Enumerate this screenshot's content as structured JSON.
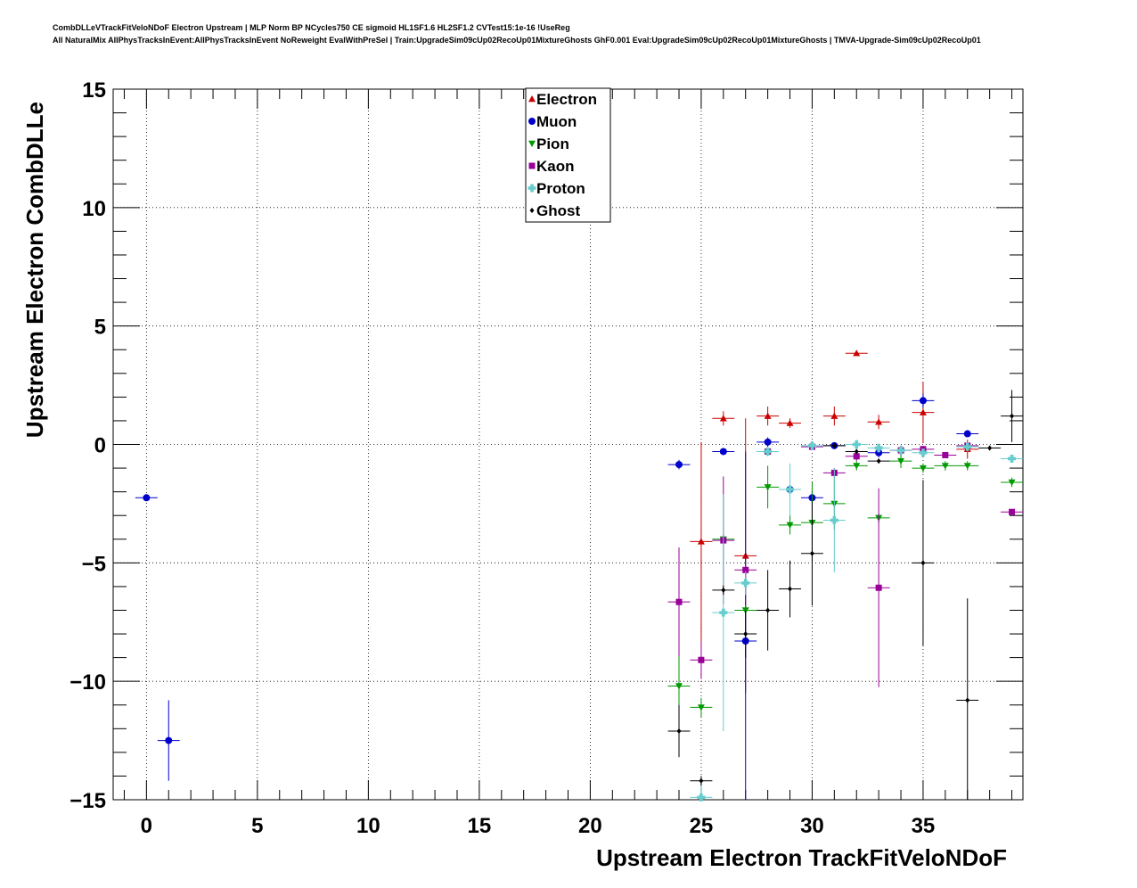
{
  "header": {
    "title_line1": "CombDLLeVTrackFitVeloNDoF Electron Upstream | MLP Norm BP NCycles750 CE sigmoid HL1SF1.6 HL2SF1.2 CVTest15:1e-16 !UseReg",
    "title_line2": "All NaturalMix AllPhysTracksInEvent:AllPhysTracksInEvent NoReweight EvalWithPreSel | Train:UpgradeSim09cUp02RecoUp01MixtureGhosts GhF0.001 Eval:UpgradeSim09cUp02RecoUp01MixtureGhosts | TMVA-Upgrade-Sim09cUp02RecoUp01"
  },
  "chart_data": {
    "type": "scatter",
    "xlabel": "Upstream Electron TrackFitVeloNDoF",
    "ylabel": "Upstream Electron CombDLLe",
    "xlim": [
      -1.5,
      39.5
    ],
    "ylim": [
      -15,
      15
    ],
    "x_ticks": [
      0,
      5,
      10,
      15,
      20,
      25,
      30,
      35
    ],
    "x_tick_labels": [
      "0",
      "5",
      "10",
      "15",
      "20",
      "25",
      "30",
      "35"
    ],
    "y_ticks": [
      -15,
      -10,
      -5,
      0,
      5,
      10,
      15
    ],
    "y_tick_labels": [
      "−15",
      "−10",
      "−5",
      "0",
      "5",
      "10",
      "15"
    ],
    "grid": true,
    "legend_position": "top-center",
    "series": [
      {
        "name": "Electron",
        "color": "#cc0000",
        "marker": "triangle-up",
        "points": [
          [
            25,
            -4.1,
            4.2
          ],
          [
            26,
            1.1,
            0.3
          ],
          [
            27,
            -4.7,
            5.8
          ],
          [
            28,
            1.2,
            0.4
          ],
          [
            29,
            0.9,
            0.2
          ],
          [
            31,
            1.2,
            0.4
          ],
          [
            32,
            3.85,
            0.1
          ],
          [
            33,
            0.95,
            0.3
          ],
          [
            35,
            1.35,
            1.3
          ],
          [
            37,
            -0.2,
            0.4
          ]
        ]
      },
      {
        "name": "Muon",
        "color": "#0000cc",
        "marker": "circle",
        "points": [
          [
            0,
            -2.25,
            0.1
          ],
          [
            1,
            -12.5,
            1.7
          ],
          [
            24,
            -0.85,
            0.2
          ],
          [
            26,
            -0.3,
            0.1
          ],
          [
            27,
            -8.3,
            8.0
          ],
          [
            28,
            0.1,
            0.2
          ],
          [
            29,
            -1.9,
            0.2
          ],
          [
            30,
            -2.25,
            0.3
          ],
          [
            31,
            -0.05,
            0.1
          ],
          [
            33,
            -0.35,
            0.2
          ],
          [
            35,
            1.85,
            0.3
          ],
          [
            37,
            0.45,
            0.1
          ]
        ]
      },
      {
        "name": "Pion",
        "color": "#009900",
        "marker": "triangle-down",
        "points": [
          [
            24,
            -10.2,
            1.4
          ],
          [
            25,
            -11.1,
            0.4
          ],
          [
            26,
            -4.0,
            0.2
          ],
          [
            27,
            -7.0,
            0.2
          ],
          [
            28,
            -1.8,
            0.9
          ],
          [
            29,
            -3.4,
            0.4
          ],
          [
            30,
            -3.3,
            1.7
          ],
          [
            31,
            -2.5,
            1.1
          ],
          [
            32,
            -0.9,
            0.2
          ],
          [
            33,
            -3.1,
            0.2
          ],
          [
            34,
            -0.7,
            0.3
          ],
          [
            35,
            -1.0,
            0.2
          ],
          [
            36,
            -0.9,
            0.2
          ],
          [
            37,
            -0.9,
            0.2
          ],
          [
            39,
            -1.6,
            0.2
          ]
        ]
      },
      {
        "name": "Kaon",
        "color": "#990099",
        "marker": "square",
        "points": [
          [
            24,
            -6.65,
            2.3
          ],
          [
            25,
            -9.1,
            0.8
          ],
          [
            26,
            -4.05,
            2.7
          ],
          [
            27,
            -5.3,
            0.2
          ],
          [
            28,
            -0.3,
            0.1
          ],
          [
            30,
            -0.1,
            0.1
          ],
          [
            31,
            -1.2,
            0.2
          ],
          [
            32,
            -0.5,
            0.2
          ],
          [
            33,
            -6.05,
            4.2
          ],
          [
            34,
            -0.25,
            0.2
          ],
          [
            35,
            -0.2,
            0.1
          ],
          [
            36,
            -0.45,
            0.1
          ],
          [
            37,
            -0.05,
            0.1
          ],
          [
            39,
            -2.85,
            0.1
          ]
        ]
      },
      {
        "name": "Proton",
        "color": "#66cccc",
        "marker": "cross",
        "points": [
          [
            25,
            -14.9,
            0.9
          ],
          [
            26,
            -7.1,
            5.0
          ],
          [
            27,
            -5.85,
            0.5
          ],
          [
            28,
            -0.3,
            0.2
          ],
          [
            29,
            -1.9,
            1.1
          ],
          [
            30,
            -0.05,
            0.2
          ],
          [
            31,
            -3.2,
            2.2
          ],
          [
            32,
            0.0,
            0.2
          ],
          [
            33,
            -0.15,
            0.2
          ],
          [
            34,
            -0.25,
            0.1
          ],
          [
            35,
            -0.35,
            0.1
          ],
          [
            37,
            -0.1,
            0.2
          ],
          [
            39,
            -0.6,
            0.1
          ]
        ]
      },
      {
        "name": "Ghost",
        "color": "#000000",
        "marker": "diamond",
        "points": [
          [
            24,
            -12.1,
            1.1
          ],
          [
            25,
            -14.2,
            0.2
          ],
          [
            26,
            -6.15,
            0.2
          ],
          [
            27,
            -8.0,
            1.0
          ],
          [
            28,
            -7.0,
            1.7
          ],
          [
            29,
            -6.1,
            1.2
          ],
          [
            30,
            -4.6,
            2.2
          ],
          [
            31,
            -0.05,
            0.1
          ],
          [
            32,
            -0.3,
            0.1
          ],
          [
            33,
            -0.7,
            0.1
          ],
          [
            35,
            -5.0,
            3.5
          ],
          [
            37,
            -10.8,
            4.3
          ],
          [
            38,
            -0.15,
            0.1
          ],
          [
            39,
            1.2,
            1.1
          ]
        ]
      }
    ]
  }
}
